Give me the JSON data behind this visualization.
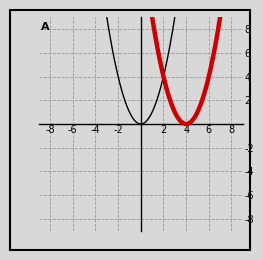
{
  "title": "A",
  "xlim": [
    -9,
    9
  ],
  "ylim": [
    -9,
    9
  ],
  "xticks": [
    -8,
    -6,
    -4,
    -2,
    2,
    4,
    6,
    8
  ],
  "yticks": [
    -8,
    -6,
    -4,
    -2,
    2,
    4,
    6,
    8
  ],
  "parabola1": {
    "color": "#000000",
    "linewidth": 1.0
  },
  "parabola2": {
    "color": "#cc0000",
    "linewidth": 3.2
  },
  "grid_color": "#999999",
  "grid_style": "--",
  "background_color": "#d8d8d8",
  "axes_color": "#000000",
  "border_color": "#000000",
  "title_fontsize": 8,
  "tick_fontsize": 7
}
